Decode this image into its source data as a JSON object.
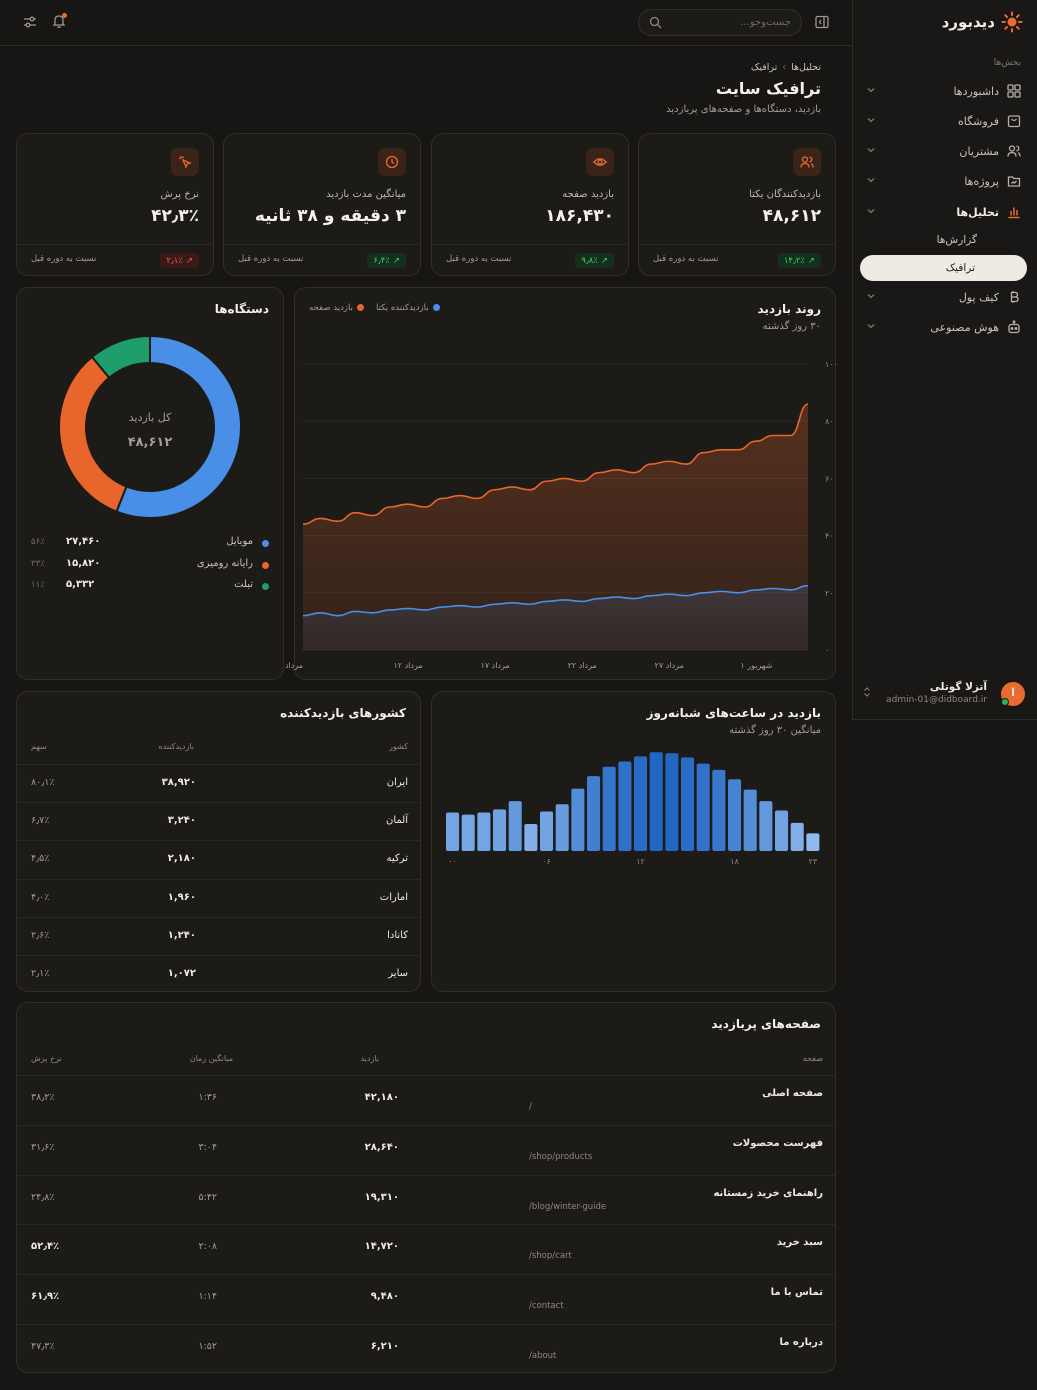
{
  "brand": {
    "name": "دیدبورد"
  },
  "header": {
    "search_placeholder": "جست‌وجو..."
  },
  "sidebar": {
    "section_label": "بخش‌ها",
    "items": [
      {
        "label": "داشبوردها",
        "icon": "grid-icon"
      },
      {
        "label": "فروشگاه",
        "icon": "bag-icon"
      },
      {
        "label": "مشتریان",
        "icon": "users-icon"
      },
      {
        "label": "پروژه‌ها",
        "icon": "folder-icon"
      },
      {
        "label": "تحلیل‌ها",
        "icon": "bar-chart-icon",
        "active": true
      },
      {
        "label": "کیف پول",
        "icon": "bitcoin-icon"
      },
      {
        "label": "هوش مصنوعی",
        "icon": "robot-icon"
      }
    ],
    "sub_items": [
      {
        "label": "گزارش‌ها"
      },
      {
        "label": "ترافیک",
        "selected": true
      }
    ],
    "user": {
      "initial": "آ",
      "name": "آتزلا گوتلی",
      "email": "admin-01@didboard.ir"
    }
  },
  "page": {
    "breadcrumb": [
      "تحلیل‌ها",
      "ترافیک"
    ],
    "title": "ترافیک سایت",
    "subtitle": "بازدید، دستگاه‌ها و صفحه‌های پربازدید"
  },
  "kpis": [
    {
      "label": "بازدیدکنندگان یکتا",
      "value": "۴۸,۶۱۲",
      "change": "۱۴٫۲٪",
      "trend": "up",
      "compare": "نسبت به دوره قبل",
      "icon": "users-icon"
    },
    {
      "label": "بازدید صفحه",
      "value": "۱۸۶,۴۳۰",
      "change": "۹٫۸٪",
      "trend": "up",
      "compare": "نسبت به دوره قبل",
      "icon": "eye-icon"
    },
    {
      "label": "میانگین مدت بازدید",
      "value": "۳ دقیقه و ۳۸ ثانیه",
      "change": "۶٫۴٪",
      "trend": "up",
      "compare": "نسبت به دوره قبل",
      "icon": "clock-icon"
    },
    {
      "label": "نرخ پرش",
      "value": "۴۲٫۳٪",
      "change": "۲٫۱٪",
      "trend": "down",
      "compare": "نسبت به دوره قبل",
      "icon": "cursor-click-icon"
    }
  ],
  "trend_card": {
    "title": "روند بازدید",
    "subtitle": "۳۰ روز گذشته",
    "chart_data": {
      "type": "area",
      "x": [
        "مرداد",
        "",
        "",
        "",
        "",
        "مرداد ۱۲",
        "",
        "",
        "",
        "",
        "مرداد ۱۷",
        "",
        "",
        "",
        "",
        "مرداد ۲۲",
        "",
        "",
        "",
        "",
        "مرداد ۲۷",
        "",
        "",
        "",
        "",
        "شهریور ۱",
        "",
        "",
        "",
        ""
      ],
      "ylim": [
        0,
        100
      ],
      "yticks": [
        "۰",
        "۲۰",
        "۴۰",
        "۶۰",
        "۸۰",
        "۱۰۰"
      ],
      "series": [
        {
          "name": "بازدیدکننده یکتا",
          "color": "#4a8fe7",
          "values": [
            12,
            13,
            12,
            13.5,
            13,
            14,
            14.5,
            14,
            15,
            15.5,
            15,
            16,
            16.5,
            16,
            17,
            17.5,
            17,
            18,
            18.5,
            18,
            19,
            19.5,
            19,
            20,
            20.5,
            20,
            21,
            21.5,
            21,
            22.5
          ]
        },
        {
          "name": "بازدید صفحه",
          "color": "#e8652c",
          "values": [
            44,
            46,
            45,
            48,
            47,
            50,
            51,
            50,
            53,
            54,
            53,
            56,
            57,
            56,
            59,
            60,
            59,
            62,
            63,
            62,
            65,
            66,
            65,
            69,
            70,
            70,
            73,
            75,
            75,
            86
          ]
        }
      ]
    }
  },
  "devices_card": {
    "title": "دستگاه‌ها",
    "center_label": "کل بازدید",
    "center_value": "۴۸,۶۱۲",
    "chart_data": {
      "type": "pie",
      "labels": [
        "موبایل",
        "رایانه رومیزی",
        "تبلت"
      ],
      "values": [
        56,
        33,
        11
      ],
      "colors": [
        "#4a8fe7",
        "#e8652c",
        "#1f9e6b"
      ]
    },
    "rows": [
      {
        "name": "موبایل",
        "value": "۲۷,۴۶۰",
        "percent": "۵۶٪",
        "color": "#4a8fe7"
      },
      {
        "name": "رایانه رومیزی",
        "value": "۱۵,۸۲۰",
        "percent": "۳۳٪",
        "color": "#e8652c"
      },
      {
        "name": "تبلت",
        "value": "۵,۳۳۲",
        "percent": "۱۱٪",
        "color": "#1f9e6b"
      }
    ]
  },
  "hourly_card": {
    "title": "بازدید در ساعت‌های شبانه‌روز",
    "subtitle": "میانگین ۳۰ روز گذشته",
    "chart_data": {
      "type": "bar",
      "categories": [
        "۰۰",
        "",
        "",
        "",
        "",
        "",
        "۰۶",
        "",
        "",
        "",
        "",
        "",
        "۱۲",
        "",
        "",
        "",
        "",
        "",
        "۱۸",
        "",
        "",
        "",
        "",
        "۲۳"
      ],
      "values": [
        37,
        35,
        37,
        40,
        48,
        26,
        38,
        45,
        60,
        72,
        81,
        86,
        91,
        95,
        94,
        90,
        84,
        78,
        69,
        59,
        48,
        39,
        27,
        17
      ],
      "ylim": [
        0,
        100
      ]
    }
  },
  "countries_card": {
    "title": "کشورهای بازدیدکننده",
    "headers": {
      "country": "کشور",
      "visitors": "بازدیدکننده",
      "share": "سهم"
    },
    "rows": [
      {
        "country": "ایران",
        "visitors": "۳۸,۹۲۰",
        "share": "۸۰٫۱٪"
      },
      {
        "country": "آلمان",
        "visitors": "۳,۲۴۰",
        "share": "۶٫۷٪"
      },
      {
        "country": "ترکیه",
        "visitors": "۲,۱۸۰",
        "share": "۴٫۵٪"
      },
      {
        "country": "امارات",
        "visitors": "۱,۹۶۰",
        "share": "۴٫۰٪"
      },
      {
        "country": "کانادا",
        "visitors": "۱,۲۴۰",
        "share": "۲٫۶٪"
      },
      {
        "country": "سایر",
        "visitors": "۱,۰۷۲",
        "share": "۲٫۱٪"
      }
    ]
  },
  "pages_card": {
    "title": "صفحه‌های پربازدید",
    "headers": {
      "page": "صفحه",
      "views": "بازدید",
      "avg_time": "میانگین زمان",
      "bounce": "نرخ پرش"
    },
    "rows": [
      {
        "name": "صفحه اصلی",
        "path": "/",
        "views": "۴۲,۱۸۰",
        "avg_time": "۱:۳۶",
        "bounce": "۳۸٫۲٪"
      },
      {
        "name": "فهرست محصولات",
        "path": "/shop/products",
        "views": "۲۸,۶۴۰",
        "avg_time": "۳:۰۴",
        "bounce": "۳۱٫۶٪"
      },
      {
        "name": "راهنمای خرید زمستانه",
        "path": "/blog/winter-guide",
        "views": "۱۹,۳۱۰",
        "avg_time": "۵:۴۲",
        "bounce": "۲۴٫۸٪"
      },
      {
        "name": "سبد خرید",
        "path": "/shop/cart",
        "views": "۱۴,۷۲۰",
        "avg_time": "۲:۰۸",
        "bounce": "۵۲٫۴٪",
        "highlight": true
      },
      {
        "name": "تماس با ما",
        "path": "/contact",
        "views": "۹,۴۸۰",
        "avg_time": "۱:۱۴",
        "bounce": "۶۱٫۹٪",
        "highlight": true
      },
      {
        "name": "درباره ما",
        "path": "/about",
        "views": "۶,۲۱۰",
        "avg_time": "۱:۵۲",
        "bounce": "۴۷٫۳٪"
      }
    ]
  }
}
